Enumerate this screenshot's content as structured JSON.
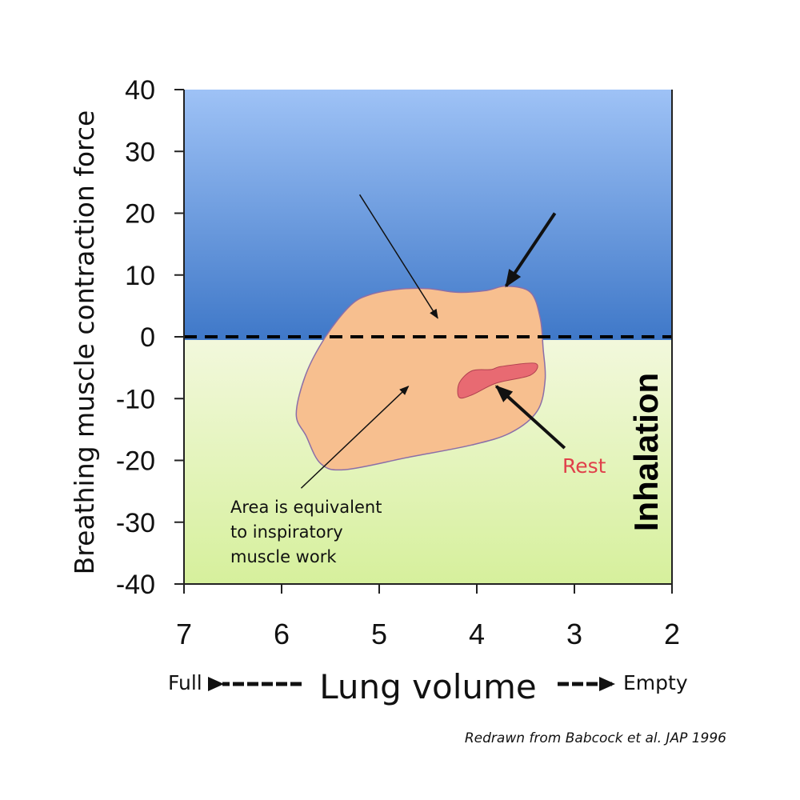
{
  "chart_data": {
    "type": "area",
    "ylabel": "Breathing muscle contraction force",
    "xlabel": "Lung volume",
    "x_ticks": [
      "7",
      "6",
      "5",
      "4",
      "3",
      "2"
    ],
    "y_ticks": [
      "40",
      "30",
      "20",
      "10",
      "0",
      "-10",
      "-20",
      "-30",
      "-40"
    ],
    "xlim": [
      7,
      2
    ],
    "ylim": [
      -40,
      40
    ],
    "x_reversed": true,
    "x_direction_labels": {
      "left": "Full",
      "right": "Empty"
    },
    "zero_line": {
      "y": 0,
      "style": "dashed"
    },
    "regions": [
      {
        "id": "exhalation-zone",
        "y_range": [
          0,
          40
        ],
        "color_top": "#9ec2f6",
        "color_bottom": "#3f78c8"
      },
      {
        "id": "inhalation-zone",
        "y_range": [
          -40,
          0
        ],
        "color_top": "#f2f8dc",
        "color_bottom": "#d6f09c",
        "label": "Inhalation"
      }
    ],
    "series": [
      {
        "id": "exercise-loop",
        "color": "#f7bf8f",
        "points": [
          [
            5.55,
            0
          ],
          [
            5.3,
            5
          ],
          [
            5.1,
            6.8
          ],
          [
            4.8,
            7.7
          ],
          [
            4.5,
            7.8
          ],
          [
            4.2,
            7.2
          ],
          [
            3.9,
            7.5
          ],
          [
            3.7,
            8.2
          ],
          [
            3.45,
            7.2
          ],
          [
            3.35,
            3
          ],
          [
            3.32,
            -2
          ],
          [
            3.3,
            -7
          ],
          [
            3.38,
            -12
          ],
          [
            3.65,
            -15.5
          ],
          [
            4.05,
            -17.5
          ],
          [
            4.7,
            -19.5
          ],
          [
            5.35,
            -21.5
          ],
          [
            5.6,
            -20.5
          ],
          [
            5.75,
            -16
          ],
          [
            5.85,
            -12.5
          ],
          [
            5.75,
            -6
          ],
          [
            5.55,
            0
          ]
        ]
      },
      {
        "id": "rest-loop",
        "label": "Rest",
        "color": "#e86a72",
        "points": [
          [
            4.18,
            -7.5
          ],
          [
            4.05,
            -5.5
          ],
          [
            3.85,
            -5.3
          ],
          [
            3.75,
            -4.8
          ],
          [
            3.4,
            -4.3
          ],
          [
            3.45,
            -6.2
          ],
          [
            3.8,
            -7.5
          ],
          [
            4.05,
            -9.4
          ],
          [
            4.18,
            -9.8
          ],
          [
            4.18,
            -7.5
          ]
        ]
      }
    ],
    "annotations": [
      {
        "id": "note-area",
        "lines": [
          "Area is equivalent",
          "to inspiratory",
          "muscle work"
        ]
      },
      {
        "id": "rest-label",
        "text": "Rest",
        "color": "#e0404a"
      }
    ],
    "arrows": [
      {
        "id": "arrow-to-loop-top",
        "from": [
          5.2,
          23
        ],
        "to": [
          4.4,
          3
        ],
        "weight": "thin"
      },
      {
        "id": "arrow-to-loop-corner",
        "from": [
          3.2,
          20
        ],
        "to": [
          3.7,
          8.2
        ],
        "weight": "thick"
      },
      {
        "id": "arrow-to-loop-inside",
        "from": [
          5.8,
          -24.5
        ],
        "to": [
          4.7,
          -8
        ],
        "weight": "thin"
      },
      {
        "id": "arrow-to-rest",
        "from": [
          3.1,
          -18
        ],
        "to": [
          3.8,
          -8
        ],
        "weight": "thick"
      }
    ],
    "grid": false
  },
  "credit": "Redrawn from Babcock et al. JAP 1996"
}
